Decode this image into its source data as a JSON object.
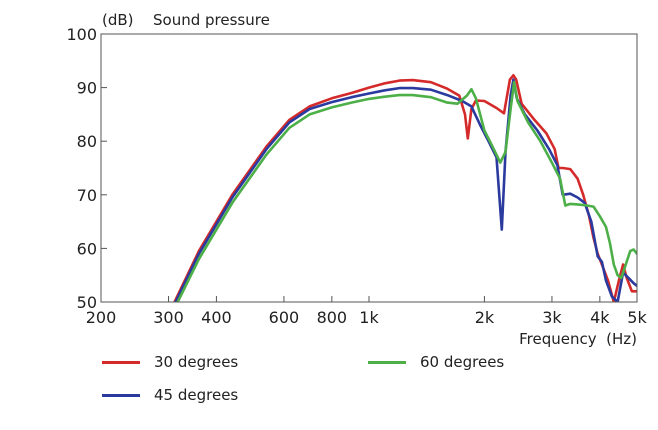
{
  "chart_data": {
    "type": "line",
    "title": "Sound pressure",
    "ylabel": "(dB)",
    "xlabel": "Frequency  (Hz)",
    "xscale": "log",
    "xlim": [
      200,
      5000
    ],
    "ylim": [
      50,
      100
    ],
    "x_ticks": [
      {
        "value": 200,
        "label": "200"
      },
      {
        "value": 300,
        "label": "300"
      },
      {
        "value": 400,
        "label": "400"
      },
      {
        "value": 600,
        "label": "600"
      },
      {
        "value": 800,
        "label": "800"
      },
      {
        "value": 1000,
        "label": "1k"
      },
      {
        "value": 2000,
        "label": "2k"
      },
      {
        "value": 3000,
        "label": "3k"
      },
      {
        "value": 4000,
        "label": "4k"
      },
      {
        "value": 5000,
        "label": "5k"
      }
    ],
    "y_ticks": [
      {
        "value": 50,
        "label": "50"
      },
      {
        "value": 60,
        "label": "60"
      },
      {
        "value": 70,
        "label": "70"
      },
      {
        "value": 80,
        "label": "80"
      },
      {
        "value": 90,
        "label": "90"
      },
      {
        "value": 100,
        "label": "100"
      }
    ],
    "grid": false,
    "legend_position": "bottom",
    "series": [
      {
        "name": "30 degrees",
        "color": "#d42a2a",
        "points": [
          [
            311,
            50
          ],
          [
            360,
            59.5
          ],
          [
            440,
            70
          ],
          [
            540,
            79
          ],
          [
            620,
            84
          ],
          [
            700,
            86.5
          ],
          [
            800,
            88
          ],
          [
            900,
            89
          ],
          [
            1000,
            90
          ],
          [
            1100,
            90.8
          ],
          [
            1200,
            91.3
          ],
          [
            1300,
            91.4
          ],
          [
            1450,
            91
          ],
          [
            1600,
            89.8
          ],
          [
            1720,
            88.5
          ],
          [
            1780,
            85
          ],
          [
            1810,
            80.5
          ],
          [
            1850,
            86
          ],
          [
            1900,
            87.6
          ],
          [
            2000,
            87.5
          ],
          [
            2150,
            86.2
          ],
          [
            2250,
            85.2
          ],
          [
            2330,
            91.5
          ],
          [
            2380,
            92.3
          ],
          [
            2420,
            91.5
          ],
          [
            2500,
            87
          ],
          [
            2700,
            84
          ],
          [
            2900,
            81.5
          ],
          [
            3050,
            78.5
          ],
          [
            3120,
            75
          ],
          [
            3200,
            75
          ],
          [
            3350,
            74.8
          ],
          [
            3500,
            73
          ],
          [
            3620,
            70
          ],
          [
            3750,
            66
          ],
          [
            3850,
            62
          ],
          [
            3950,
            59
          ],
          [
            4050,
            57
          ],
          [
            4200,
            54
          ],
          [
            4350,
            50
          ],
          [
            4500,
            54.5
          ],
          [
            4600,
            57
          ],
          [
            4700,
            54.5
          ],
          [
            4850,
            52
          ],
          [
            5000,
            52
          ]
        ]
      },
      {
        "name": "45 degrees",
        "color": "#2a3a9f",
        "points": [
          [
            313,
            50
          ],
          [
            360,
            59
          ],
          [
            440,
            69.5
          ],
          [
            540,
            78.5
          ],
          [
            620,
            83.5
          ],
          [
            700,
            86
          ],
          [
            800,
            87.3
          ],
          [
            900,
            88.2
          ],
          [
            1000,
            88.9
          ],
          [
            1100,
            89.5
          ],
          [
            1200,
            89.9
          ],
          [
            1300,
            89.9
          ],
          [
            1450,
            89.6
          ],
          [
            1600,
            88.6
          ],
          [
            1750,
            87.5
          ],
          [
            1850,
            86.5
          ],
          [
            1950,
            83
          ],
          [
            2050,
            80
          ],
          [
            2150,
            77
          ],
          [
            2220,
            63.5
          ],
          [
            2270,
            78
          ],
          [
            2340,
            88.5
          ],
          [
            2380,
            91.5
          ],
          [
            2430,
            88
          ],
          [
            2550,
            85
          ],
          [
            2750,
            82
          ],
          [
            2950,
            78.5
          ],
          [
            3100,
            75.5
          ],
          [
            3200,
            70
          ],
          [
            3350,
            70.2
          ],
          [
            3500,
            69.5
          ],
          [
            3650,
            68.5
          ],
          [
            3800,
            65
          ],
          [
            3950,
            58.5
          ],
          [
            4050,
            57.5
          ],
          [
            4150,
            54
          ],
          [
            4300,
            51
          ],
          [
            4450,
            50
          ],
          [
            4600,
            55.5
          ],
          [
            4750,
            54.5
          ],
          [
            4900,
            53.5
          ],
          [
            5000,
            53
          ]
        ]
      },
      {
        "name": "60 degrees",
        "color": "#4caf47",
        "points": [
          [
            317,
            50
          ],
          [
            360,
            58
          ],
          [
            440,
            68.5
          ],
          [
            540,
            77.5
          ],
          [
            620,
            82.5
          ],
          [
            700,
            85
          ],
          [
            800,
            86.3
          ],
          [
            900,
            87.2
          ],
          [
            1000,
            87.9
          ],
          [
            1100,
            88.3
          ],
          [
            1200,
            88.6
          ],
          [
            1300,
            88.6
          ],
          [
            1450,
            88.2
          ],
          [
            1600,
            87.2
          ],
          [
            1700,
            87
          ],
          [
            1800,
            88.5
          ],
          [
            1850,
            89.7
          ],
          [
            1900,
            88
          ],
          [
            2000,
            82
          ],
          [
            2100,
            79
          ],
          [
            2200,
            76
          ],
          [
            2270,
            78
          ],
          [
            2340,
            86
          ],
          [
            2390,
            91
          ],
          [
            2440,
            87.5
          ],
          [
            2600,
            83.5
          ],
          [
            2800,
            80
          ],
          [
            3000,
            76
          ],
          [
            3150,
            73
          ],
          [
            3250,
            68
          ],
          [
            3350,
            68.3
          ],
          [
            3500,
            68.2
          ],
          [
            3700,
            68
          ],
          [
            3850,
            67.8
          ],
          [
            4000,
            66
          ],
          [
            4150,
            64
          ],
          [
            4250,
            61
          ],
          [
            4350,
            57
          ],
          [
            4450,
            55
          ],
          [
            4550,
            54.5
          ],
          [
            4650,
            56.5
          ],
          [
            4800,
            59.5
          ],
          [
            4900,
            59.8
          ],
          [
            5000,
            59
          ]
        ]
      }
    ]
  }
}
